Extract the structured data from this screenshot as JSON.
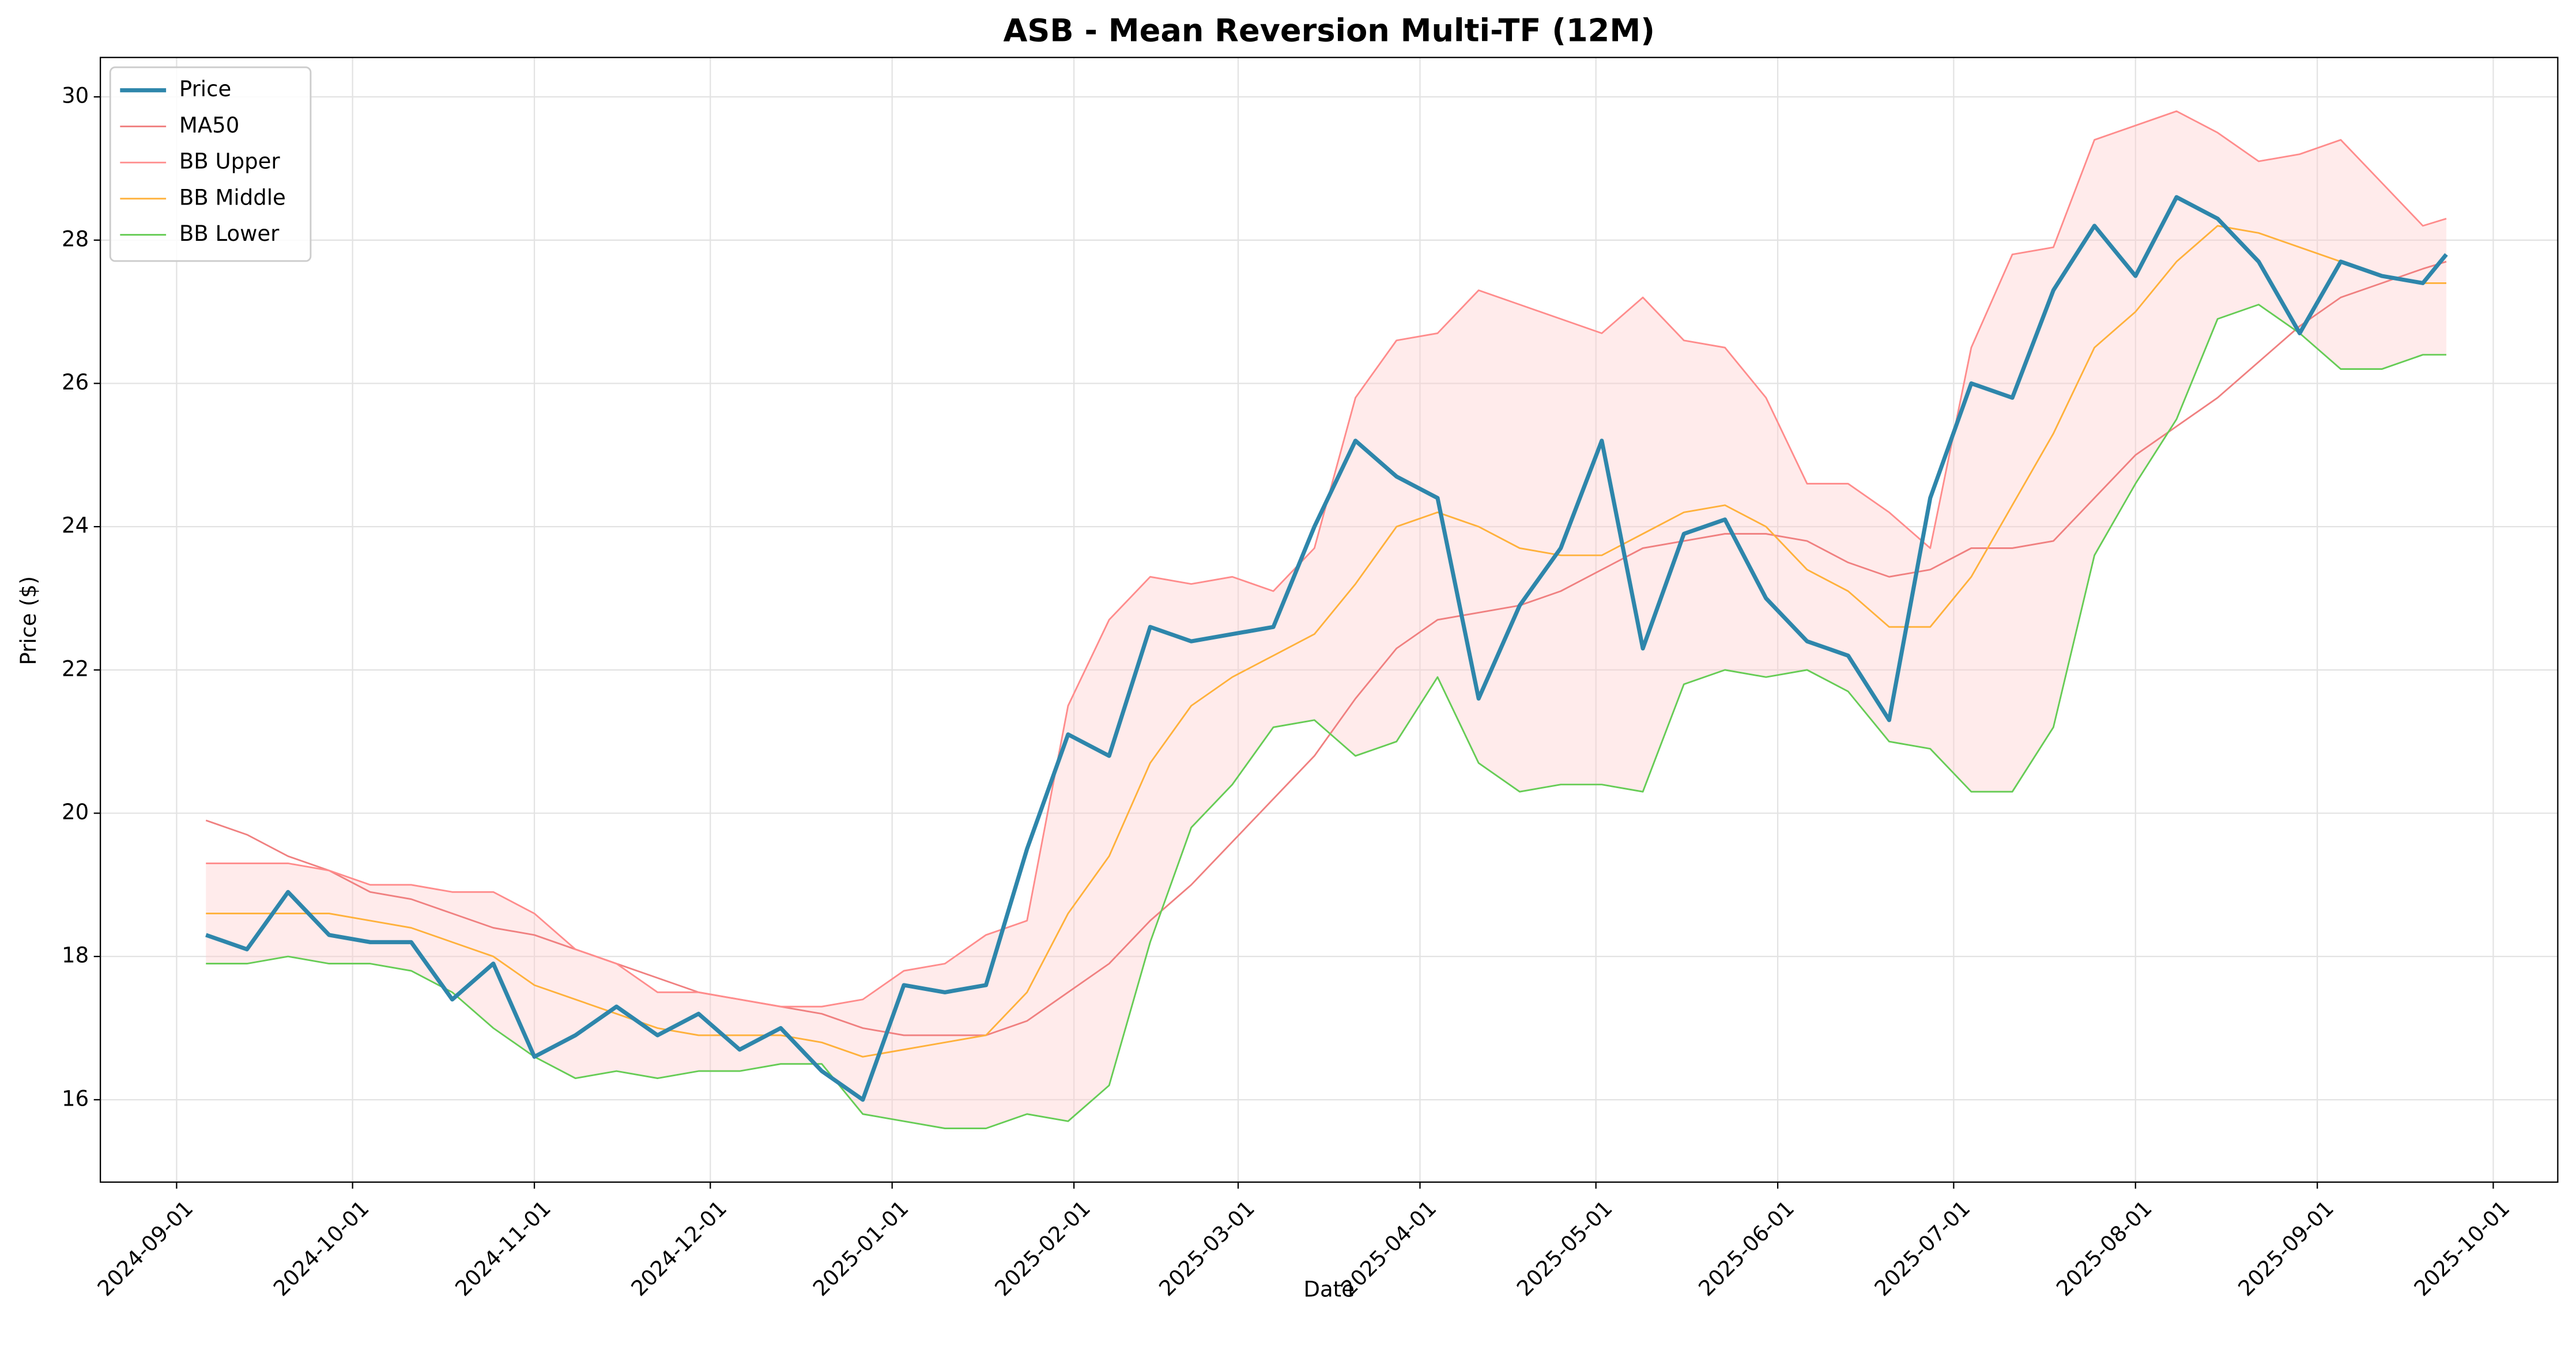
{
  "chart_data": {
    "type": "line",
    "title": "ASB - Mean Reversion Multi-TF (12M)",
    "x_label": "Date",
    "y_label": "Price ($)",
    "x": [
      "2024-09-06",
      "2024-09-13",
      "2024-09-20",
      "2024-09-27",
      "2024-10-04",
      "2024-10-11",
      "2024-10-18",
      "2024-10-25",
      "2024-11-01",
      "2024-11-08",
      "2024-11-15",
      "2024-11-22",
      "2024-11-29",
      "2024-12-06",
      "2024-12-13",
      "2024-12-20",
      "2024-12-27",
      "2025-01-03",
      "2025-01-10",
      "2025-01-17",
      "2025-01-24",
      "2025-01-31",
      "2025-02-07",
      "2025-02-14",
      "2025-02-21",
      "2025-02-28",
      "2025-03-07",
      "2025-03-14",
      "2025-03-21",
      "2025-03-28",
      "2025-04-04",
      "2025-04-11",
      "2025-04-18",
      "2025-04-25",
      "2025-05-02",
      "2025-05-09",
      "2025-05-16",
      "2025-05-23",
      "2025-05-30",
      "2025-06-06",
      "2025-06-13",
      "2025-06-20",
      "2025-06-27",
      "2025-07-04",
      "2025-07-11",
      "2025-07-18",
      "2025-07-25",
      "2025-08-01",
      "2025-08-08",
      "2025-08-15",
      "2025-08-22",
      "2025-08-29",
      "2025-09-05",
      "2025-09-12",
      "2025-09-19",
      "2025-09-23"
    ],
    "series": [
      {
        "name": "Price",
        "color": "#2e86ab",
        "width": 2.5,
        "values": [
          18.3,
          18.1,
          18.9,
          18.3,
          18.2,
          18.2,
          17.4,
          17.9,
          16.6,
          16.9,
          17.3,
          16.9,
          17.2,
          16.7,
          17.0,
          16.4,
          16.0,
          17.6,
          17.5,
          17.6,
          19.5,
          21.1,
          20.8,
          22.6,
          22.4,
          22.5,
          22.6,
          24.0,
          25.2,
          24.7,
          24.4,
          21.6,
          22.9,
          23.7,
          25.2,
          22.3,
          23.9,
          24.1,
          23.0,
          22.4,
          22.2,
          21.3,
          24.4,
          26.0,
          25.8,
          27.3,
          28.2,
          27.5,
          28.6,
          28.3,
          27.7,
          26.7,
          27.7,
          27.5,
          27.4,
          27.8
        ]
      },
      {
        "name": "MA50",
        "color": "#f08080",
        "width": 1,
        "values": [
          19.9,
          19.7,
          19.4,
          19.2,
          18.9,
          18.8,
          18.6,
          18.4,
          18.3,
          18.1,
          17.9,
          17.7,
          17.5,
          17.4,
          17.3,
          17.2,
          17.0,
          16.9,
          16.9,
          16.9,
          17.1,
          17.5,
          17.9,
          18.5,
          19.0,
          19.6,
          20.2,
          20.8,
          21.6,
          22.3,
          22.7,
          22.8,
          22.9,
          23.1,
          23.4,
          23.7,
          23.8,
          23.9,
          23.9,
          23.8,
          23.5,
          23.3,
          23.4,
          23.7,
          23.7,
          23.8,
          24.4,
          25.0,
          25.4,
          25.8,
          26.3,
          26.8,
          27.2,
          27.4,
          27.6,
          27.7
        ]
      },
      {
        "name": "BB Upper",
        "color": "#ff8c8c",
        "width": 1,
        "values": [
          19.3,
          19.3,
          19.3,
          19.2,
          19.0,
          19.0,
          18.9,
          18.9,
          18.6,
          18.1,
          17.9,
          17.5,
          17.5,
          17.4,
          17.3,
          17.3,
          17.4,
          17.8,
          17.9,
          18.3,
          18.5,
          21.5,
          22.7,
          23.3,
          23.2,
          23.3,
          23.1,
          23.7,
          25.8,
          26.6,
          26.7,
          27.3,
          27.1,
          26.9,
          26.7,
          27.2,
          26.6,
          26.5,
          25.8,
          24.6,
          24.6,
          24.2,
          23.7,
          26.5,
          27.8,
          27.9,
          29.4,
          29.6,
          29.8,
          29.5,
          29.1,
          29.2,
          29.4,
          28.8,
          28.2,
          28.3
        ]
      },
      {
        "name": "BB Middle",
        "color": "#ffb13b",
        "width": 1,
        "values": [
          18.6,
          18.6,
          18.6,
          18.6,
          18.5,
          18.4,
          18.2,
          18.0,
          17.6,
          17.4,
          17.2,
          17.0,
          16.9,
          16.9,
          16.9,
          16.8,
          16.6,
          16.7,
          16.8,
          16.9,
          17.5,
          18.6,
          19.4,
          20.7,
          21.5,
          21.9,
          22.2,
          22.5,
          23.2,
          24.0,
          24.2,
          24.0,
          23.7,
          23.6,
          23.6,
          23.9,
          24.2,
          24.3,
          24.0,
          23.4,
          23.1,
          22.6,
          22.6,
          23.3,
          24.3,
          25.3,
          26.5,
          27.0,
          27.7,
          28.2,
          28.1,
          27.9,
          27.7,
          27.5,
          27.4,
          27.4
        ]
      },
      {
        "name": "BB Lower",
        "color": "#66cc55",
        "width": 1,
        "values": [
          17.9,
          17.9,
          18.0,
          17.9,
          17.9,
          17.8,
          17.5,
          17.0,
          16.6,
          16.3,
          16.4,
          16.3,
          16.4,
          16.4,
          16.5,
          16.5,
          15.8,
          15.7,
          15.6,
          15.6,
          15.8,
          15.7,
          16.2,
          18.2,
          19.8,
          20.4,
          21.2,
          21.3,
          20.8,
          21.0,
          21.9,
          20.7,
          20.3,
          20.4,
          20.4,
          20.3,
          21.8,
          22.0,
          21.9,
          22.0,
          21.7,
          21.0,
          20.9,
          20.3,
          20.3,
          21.2,
          23.6,
          24.6,
          25.5,
          26.9,
          27.1,
          26.7,
          26.2,
          26.2,
          26.4,
          26.4
        ]
      }
    ],
    "xlim": [
      "2024-08-19",
      "2025-10-12"
    ],
    "xticks": [
      "2024-09-01",
      "2024-10-01",
      "2024-11-01",
      "2024-12-01",
      "2025-01-01",
      "2025-02-01",
      "2025-03-01",
      "2025-04-01",
      "2025-05-01",
      "2025-06-01",
      "2025-07-01",
      "2025-08-01",
      "2025-09-01",
      "2025-10-01"
    ],
    "ylim": [
      14.85,
      30.55
    ],
    "yticks": [
      16,
      18,
      20,
      22,
      24,
      26,
      28,
      30
    ],
    "grid": true,
    "legend": "upper-left"
  }
}
